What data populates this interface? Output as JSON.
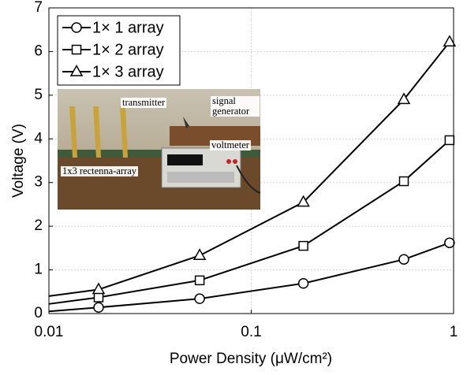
{
  "chart_data": {
    "type": "line",
    "x": [
      0.01,
      0.0176,
      0.0556,
      0.181,
      0.568,
      0.955
    ],
    "series": [
      {
        "name": "1× 1 array",
        "color": "#000000",
        "marker": "circle",
        "values": [
          0.05,
          0.14,
          0.34,
          0.69,
          1.24,
          1.62
        ]
      },
      {
        "name": "1× 2 array",
        "color": "#000000",
        "marker": "square",
        "values": [
          0.22,
          0.37,
          0.76,
          1.55,
          3.03,
          3.97
        ]
      },
      {
        "name": "1× 3 array",
        "color": "#000000",
        "marker": "triangle",
        "values": [
          0.4,
          0.55,
          1.33,
          2.55,
          4.9,
          6.22
        ]
      }
    ],
    "xlabel": "Power Density (μW/cm²)",
    "ylabel": "Voltage (V)",
    "xscale": "log",
    "xlim": [
      0.01,
      1
    ],
    "xticks": [
      0.01,
      0.1,
      1
    ],
    "ylim": [
      0,
      7
    ],
    "yticks": [
      0,
      1,
      2,
      3,
      4,
      5,
      6,
      7
    ],
    "grid": true,
    "legend": "upper left",
    "annotations": [
      "transmitter",
      "signal generator",
      "voltmeter",
      "1x3 rectenna-array"
    ]
  }
}
